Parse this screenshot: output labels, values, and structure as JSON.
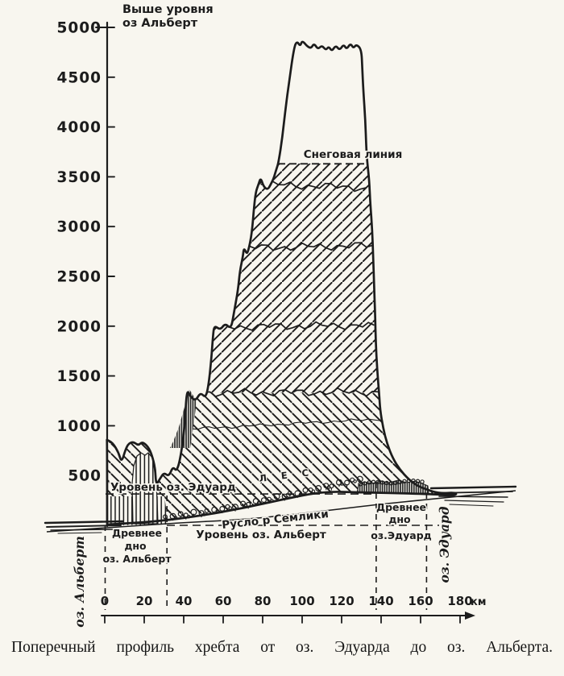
{
  "figure": {
    "y_axis_title": [
      "Выше уровня",
      "оз Альберт"
    ],
    "labels": {
      "snow_line": "Снеговая линия",
      "edward_level": "Уровень оз. Эдуард",
      "forest": "Л Е С",
      "semliki_bed": "Русло р Семлики",
      "albert_level": "Уровень оз. Альберт",
      "ancient_albert": [
        "Древнее",
        "дно",
        "оз. Альберт"
      ],
      "ancient_edward": [
        "Древнее",
        "дно",
        "оз.Эдуард"
      ],
      "lake_left_rotated": "оз. Альберт",
      "lake_right_rotated": "оз. Эдуард"
    },
    "caption": "Поперечный профиль хребта от оз. Эдуарда до оз. Альберта."
  },
  "chart_data": {
    "type": "area",
    "title": "Поперечный профиль хребта от оз. Эдуарда до оз. Альберта",
    "x_unit": "км",
    "y_unit": "м выше уровня оз. Альберт",
    "xlim": [
      0,
      180
    ],
    "ylim": [
      0,
      5000
    ],
    "x_ticks": [
      0,
      20,
      40,
      60,
      80,
      100,
      120,
      140,
      160,
      180
    ],
    "y_ticks": [
      5000,
      4500,
      4000,
      3500,
      3000,
      2500,
      2000,
      1500,
      1000,
      500
    ],
    "snow_line_m": 3630,
    "lake_edward_level_m": 315,
    "lake_albert_level_m": 0,
    "contour_lines": [
      {
        "m_left": 3425,
        "m_right": 3390,
        "km_from": 79,
        "km_to": 132.5
      },
      {
        "m_left": 2785,
        "m_right": 2810,
        "km_from": 70.5,
        "km_to": 135.5
      },
      {
        "m_left": 1990,
        "m_right": 2010,
        "km_from": 54,
        "km_to": 136.5
      },
      {
        "m_left": 1330,
        "m_right": 1340,
        "km_from": 41.5,
        "km_to": 138.5
      },
      {
        "m_left": 950,
        "m_right": 1070,
        "km_from": 27,
        "km_to": 142
      }
    ],
    "zones_km": {
      "ancient_albert_bottom": [
        0,
        31.5
      ],
      "ancient_edward_bottom": [
        137.5,
        163
      ]
    },
    "profile_km_m": [
      [
        1,
        860
      ],
      [
        4,
        830
      ],
      [
        7,
        730
      ],
      [
        8.5,
        630
      ],
      [
        10.5,
        760
      ],
      [
        12,
        820
      ],
      [
        14.5,
        840
      ],
      [
        17,
        800
      ],
      [
        19,
        840
      ],
      [
        22,
        790
      ],
      [
        24,
        700
      ],
      [
        25.5,
        580
      ],
      [
        26,
        400
      ],
      [
        28,
        470
      ],
      [
        30,
        530
      ],
      [
        32.5,
        490
      ],
      [
        34.5,
        590
      ],
      [
        36.5,
        540
      ],
      [
        38.5,
        690
      ],
      [
        40.5,
        990
      ],
      [
        41.5,
        1370
      ],
      [
        43.5,
        1290
      ],
      [
        46,
        1250
      ],
      [
        48.5,
        1335
      ],
      [
        51,
        1280
      ],
      [
        52.5,
        1390
      ],
      [
        54,
        1670
      ],
      [
        54.8,
        1900
      ],
      [
        55.5,
        2010
      ],
      [
        58.5,
        1960
      ],
      [
        61,
        2030
      ],
      [
        64,
        1970
      ],
      [
        65.5,
        2140
      ],
      [
        67.5,
        2360
      ],
      [
        68.5,
        2560
      ],
      [
        70,
        2700
      ],
      [
        70.5,
        2790
      ],
      [
        72,
        2720
      ],
      [
        73,
        2780
      ],
      [
        74.5,
        2930
      ],
      [
        75.5,
        3170
      ],
      [
        76.5,
        3350
      ],
      [
        78,
        3430
      ],
      [
        79,
        3490
      ],
      [
        80.5,
        3400
      ],
      [
        82.5,
        3370
      ],
      [
        84,
        3420
      ],
      [
        85.5,
        3480
      ],
      [
        87,
        3580
      ],
      [
        88,
        3640
      ],
      [
        90,
        3900
      ],
      [
        91.5,
        4170
      ],
      [
        93.5,
        4470
      ],
      [
        96,
        4810
      ],
      [
        97.5,
        4860
      ],
      [
        99,
        4810
      ],
      [
        100,
        4870
      ],
      [
        102.5,
        4810
      ],
      [
        104.5,
        4790
      ],
      [
        106,
        4840
      ],
      [
        108,
        4780
      ],
      [
        110,
        4820
      ],
      [
        112,
        4770
      ],
      [
        113.5,
        4810
      ],
      [
        115,
        4760
      ],
      [
        117,
        4820
      ],
      [
        119,
        4770
      ],
      [
        121,
        4830
      ],
      [
        122.5,
        4780
      ],
      [
        124.5,
        4840
      ],
      [
        126,
        4790
      ],
      [
        127.5,
        4830
      ],
      [
        130,
        4780
      ],
      [
        130.5,
        4590
      ],
      [
        131,
        4360
      ],
      [
        132,
        4070
      ],
      [
        132.5,
        3790
      ],
      [
        133,
        3640
      ],
      [
        134,
        3460
      ],
      [
        134.5,
        3240
      ],
      [
        135.5,
        2960
      ],
      [
        136,
        2690
      ],
      [
        136.5,
        2390
      ],
      [
        137,
        2100
      ],
      [
        137.3,
        1840
      ],
      [
        138,
        1570
      ],
      [
        139,
        1320
      ],
      [
        139.5,
        1160
      ],
      [
        141,
        980
      ],
      [
        143,
        820
      ],
      [
        146,
        670
      ],
      [
        149.5,
        560
      ],
      [
        153.5,
        470
      ],
      [
        158,
        400
      ],
      [
        163,
        360
      ],
      [
        169.5,
        320
      ],
      [
        178,
        330
      ]
    ]
  }
}
